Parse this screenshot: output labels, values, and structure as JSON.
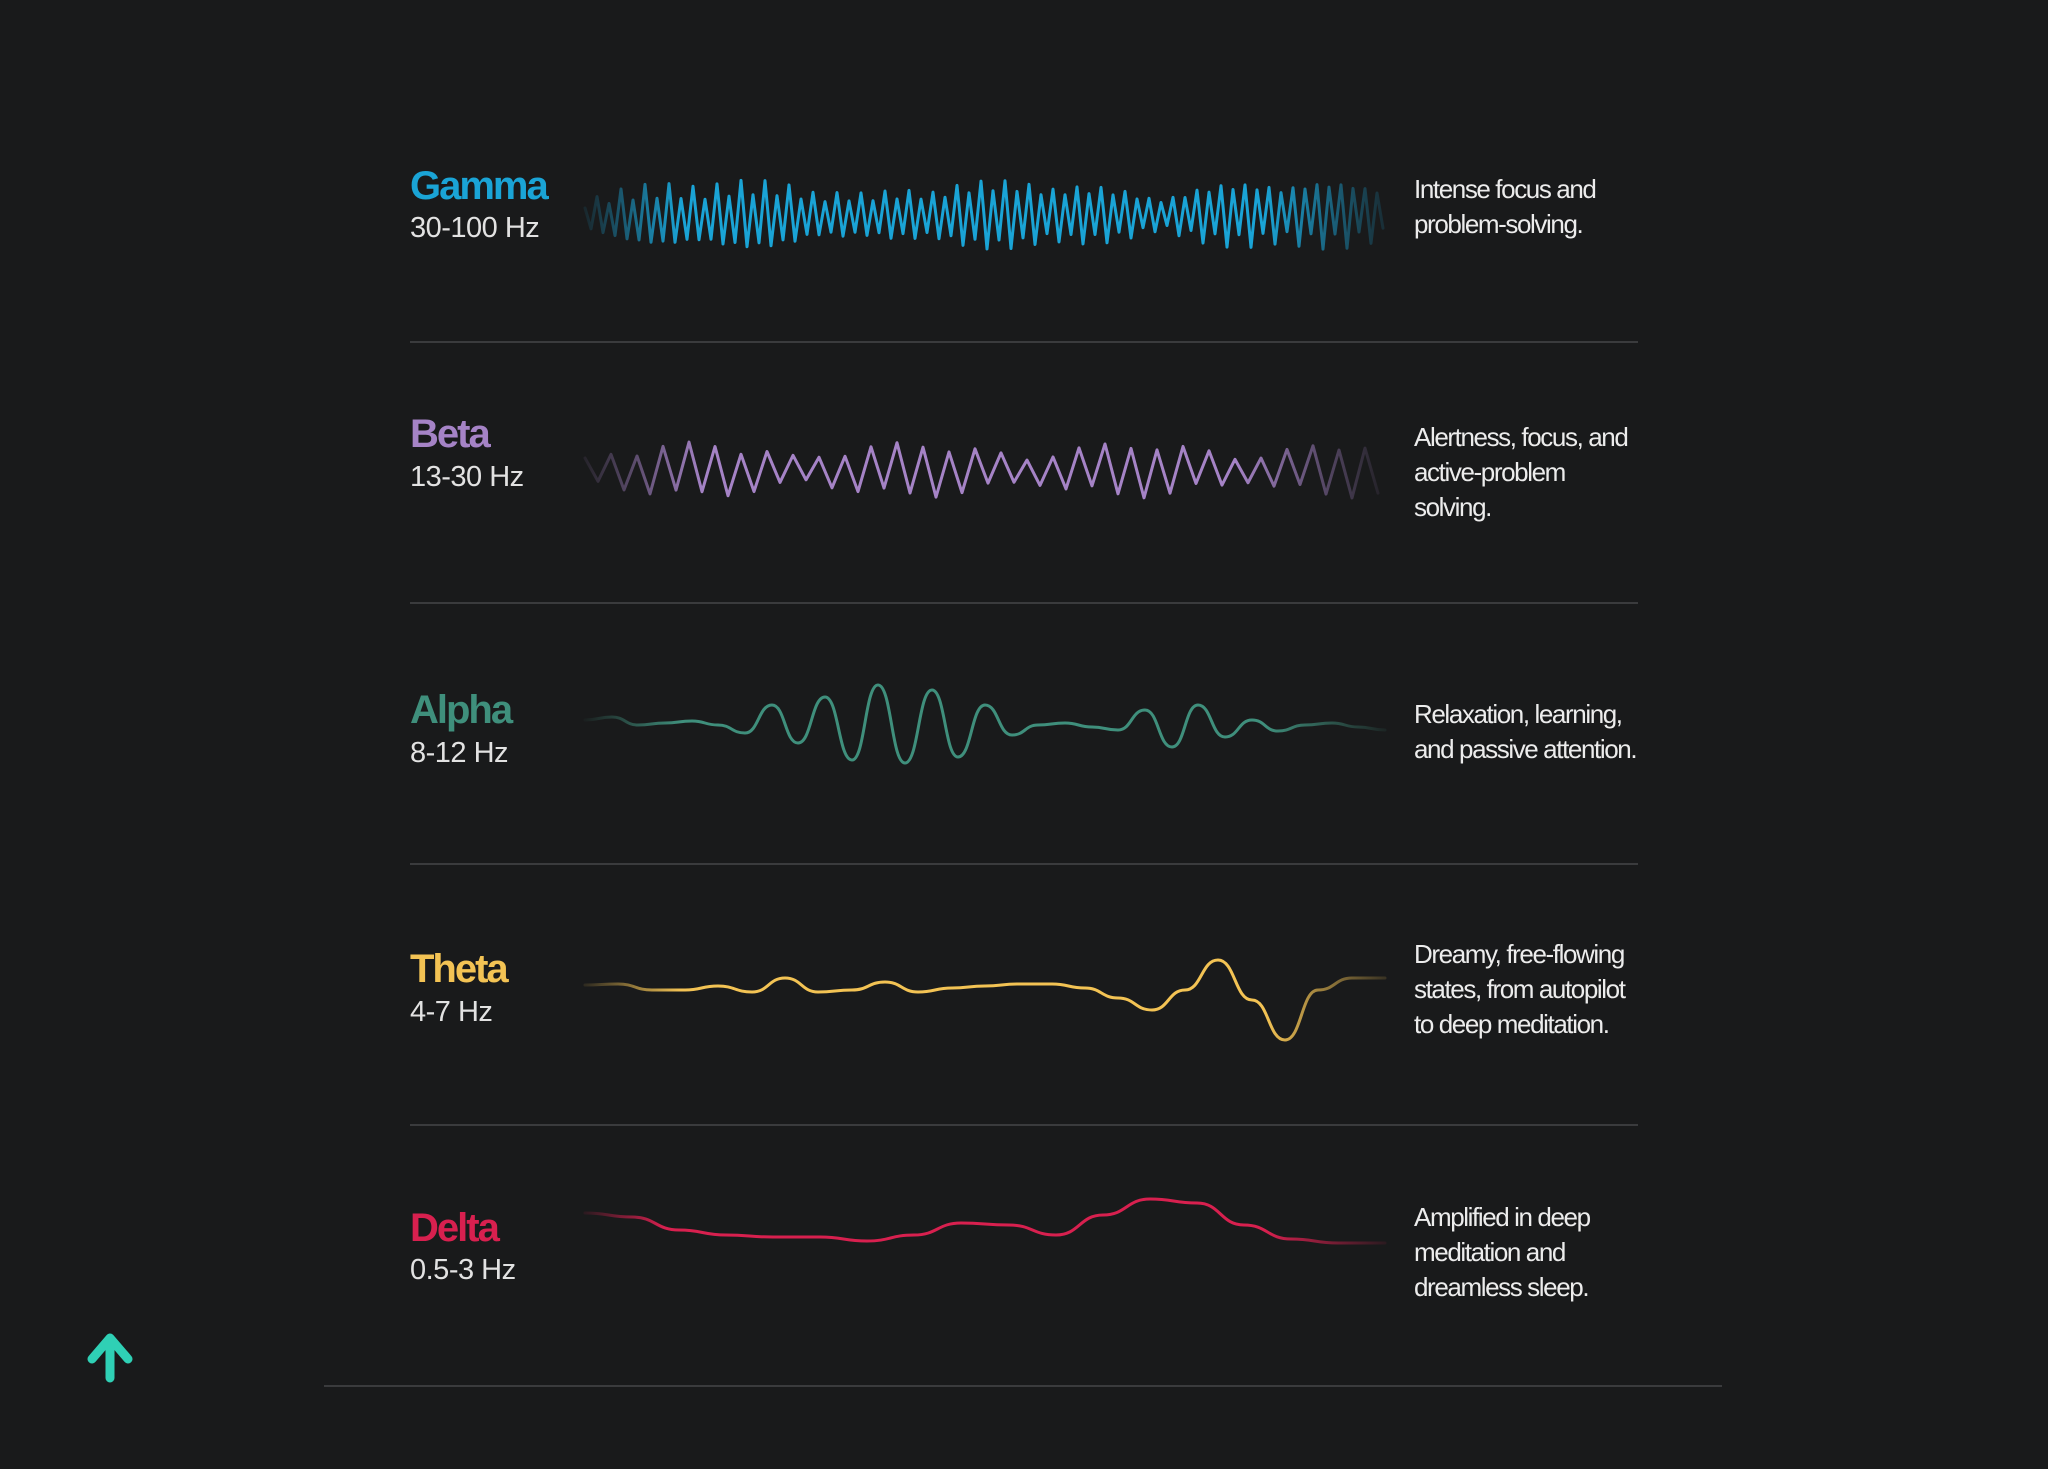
{
  "colors": {
    "background": "#191a1b",
    "divider": "#3a3b3d",
    "logo": "#2fd0b5"
  },
  "logo_icon": "up-arrow-icon",
  "bands": [
    {
      "name": "Gamma",
      "range": "30-100 Hz",
      "color": "#1aa4d6",
      "description": [
        "Intense focus and",
        "problem-solving."
      ]
    },
    {
      "name": "Beta",
      "range": "13-30 Hz",
      "color": "#a583c6",
      "description": [
        "Alertness, focus, and",
        "active-problem",
        "solving."
      ]
    },
    {
      "name": "Alpha",
      "range": "8-12 Hz",
      "color": "#3f8f7c",
      "description": [
        "Relaxation, learning,",
        "and passive attention."
      ]
    },
    {
      "name": "Theta",
      "range": "4-7 Hz",
      "color": "#f3c354",
      "description": [
        "Dreamy, free-flowing",
        "states, from autopilot",
        "to deep meditation."
      ]
    },
    {
      "name": "Delta",
      "range": "0.5-3 Hz",
      "color": "#d8204f",
      "description": [
        "Amplified in deep",
        "meditation and",
        "dreamless sleep."
      ]
    }
  ]
}
